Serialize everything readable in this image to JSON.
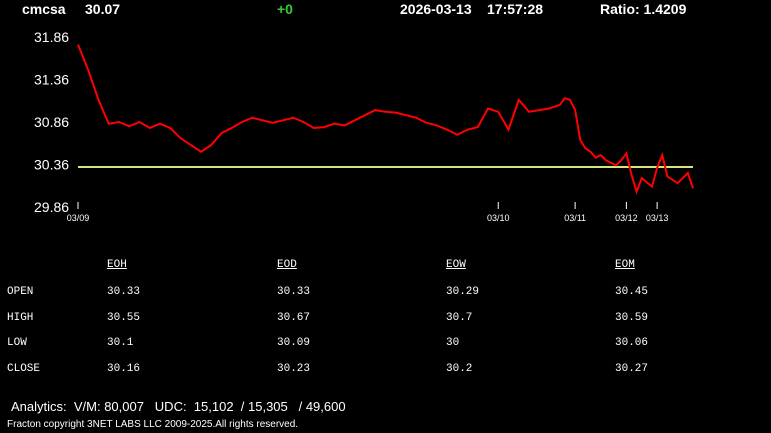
{
  "header": {
    "symbol": "cmcsa",
    "price": "30.07",
    "change": "+0",
    "date": "2026-03-13",
    "time": "17:57:28",
    "ratio": "Ratio: 1.4209"
  },
  "chart_data": {
    "type": "line",
    "x": [
      0,
      2,
      4,
      6,
      8,
      10,
      12,
      14,
      16,
      18,
      20,
      22,
      24,
      26,
      28,
      30,
      32,
      34,
      36,
      38,
      40,
      42,
      44,
      46,
      48,
      50,
      52,
      54,
      56,
      58,
      60,
      62,
      64,
      66,
      68,
      70,
      72,
      74,
      76,
      78,
      80,
      82,
      84,
      86,
      88,
      90,
      92,
      94,
      95,
      96,
      97,
      98,
      99,
      100,
      101,
      102,
      103,
      104,
      105,
      106,
      107,
      108,
      109,
      110,
      111,
      112,
      113,
      114,
      115,
      116,
      117,
      118,
      119,
      120
    ],
    "series": [
      {
        "name": "cmcsa",
        "color": "#ff0000",
        "values": [
          31.77,
          31.47,
          31.12,
          30.84,
          30.86,
          30.81,
          30.86,
          30.79,
          30.84,
          30.79,
          30.67,
          30.59,
          30.51,
          30.59,
          30.73,
          30.79,
          30.86,
          30.91,
          30.88,
          30.85,
          30.88,
          30.91,
          30.86,
          30.79,
          30.8,
          30.84,
          30.82,
          30.88,
          30.94,
          31.0,
          30.98,
          30.97,
          30.94,
          30.91,
          30.85,
          30.82,
          30.77,
          30.71,
          30.77,
          30.8,
          31.02,
          30.98,
          30.77,
          31.12,
          30.98,
          31.0,
          31.02,
          31.06,
          31.14,
          31.12,
          31.0,
          30.65,
          30.55,
          30.51,
          30.44,
          30.47,
          30.41,
          30.38,
          30.35,
          30.41,
          30.49,
          30.24,
          30.04,
          30.2,
          30.15,
          30.1,
          30.32,
          30.47,
          30.22,
          30.18,
          30.14,
          30.2,
          30.26,
          30.08
        ]
      }
    ],
    "reference_line": {
      "value": 30.33,
      "color": "#d8e47c"
    },
    "xlim": [
      0,
      120
    ],
    "xticks": [
      {
        "value": 0,
        "label": "03/09"
      },
      {
        "value": 82,
        "label": "03/10"
      },
      {
        "value": 97,
        "label": "03/11"
      },
      {
        "value": 107,
        "label": "03/12"
      },
      {
        "value": 113,
        "label": "03/13"
      }
    ],
    "ylim": [
      29.86,
      31.86
    ],
    "yticks": [
      29.86,
      30.36,
      30.86,
      31.36,
      31.86
    ]
  },
  "table": {
    "columns": [
      "EOH",
      "EOD",
      "EOW",
      "EOM"
    ],
    "rows": [
      {
        "label": "OPEN",
        "values": [
          30.33,
          30.33,
          30.29,
          30.45
        ]
      },
      {
        "label": "HIGH",
        "values": [
          30.55,
          30.67,
          30.7,
          30.59
        ]
      },
      {
        "label": "LOW",
        "values": [
          30.1,
          30.09,
          30,
          30.06
        ]
      },
      {
        "label": "CLOSE",
        "values": [
          30.16,
          30.23,
          30.2,
          30.27
        ]
      }
    ]
  },
  "footer": {
    "analytics": "Analytics:  V/M: 80,007   UDC:  15,102  / 15,305   / 49,600",
    "copyright": "Fracton copyright 3NET LABS LLC 2009-2025.All rights reserved."
  }
}
